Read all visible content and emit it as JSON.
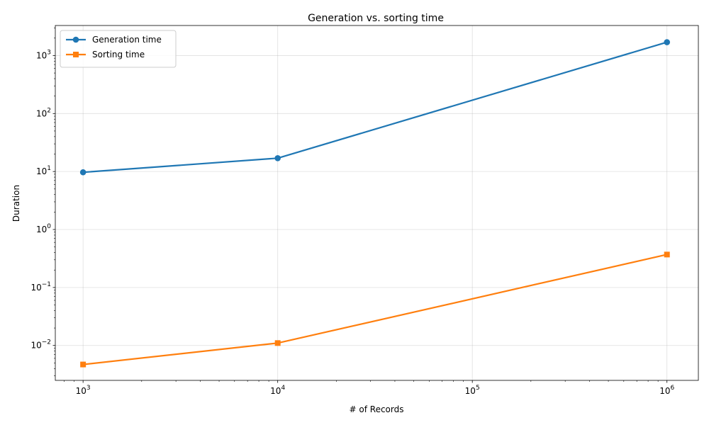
{
  "chart_data": {
    "type": "line",
    "title": "Generation vs. sorting time",
    "xlabel": "# of Records",
    "ylabel": "Duration",
    "xscale": "log",
    "yscale": "log",
    "xlim": [
      720,
      1450000
    ],
    "ylim": [
      0.0025,
      3300
    ],
    "grid": true,
    "legend_position": "top-left",
    "x_ticks": [
      {
        "value": 1000,
        "base": "10",
        "exp": "3"
      },
      {
        "value": 10000,
        "base": "10",
        "exp": "4"
      },
      {
        "value": 100000,
        "base": "10",
        "exp": "5"
      },
      {
        "value": 1000000,
        "base": "10",
        "exp": "6"
      }
    ],
    "y_ticks": [
      {
        "value": 0.01,
        "base": "10",
        "exp": "−2"
      },
      {
        "value": 0.1,
        "base": "10",
        "exp": "−1"
      },
      {
        "value": 1,
        "base": "10",
        "exp": "0"
      },
      {
        "value": 10,
        "base": "10",
        "exp": "1"
      },
      {
        "value": 100,
        "base": "10",
        "exp": "2"
      },
      {
        "value": 1000,
        "base": "10",
        "exp": "3"
      }
    ],
    "x": [
      1000,
      10000,
      1000000
    ],
    "series": [
      {
        "name": "Generation time",
        "values": [
          9.7,
          17,
          1700
        ],
        "color": "#1f77b4",
        "marker": "circle"
      },
      {
        "name": "Sorting time",
        "values": [
          0.0047,
          0.011,
          0.37
        ],
        "color": "#ff7f0e",
        "marker": "square"
      }
    ]
  }
}
